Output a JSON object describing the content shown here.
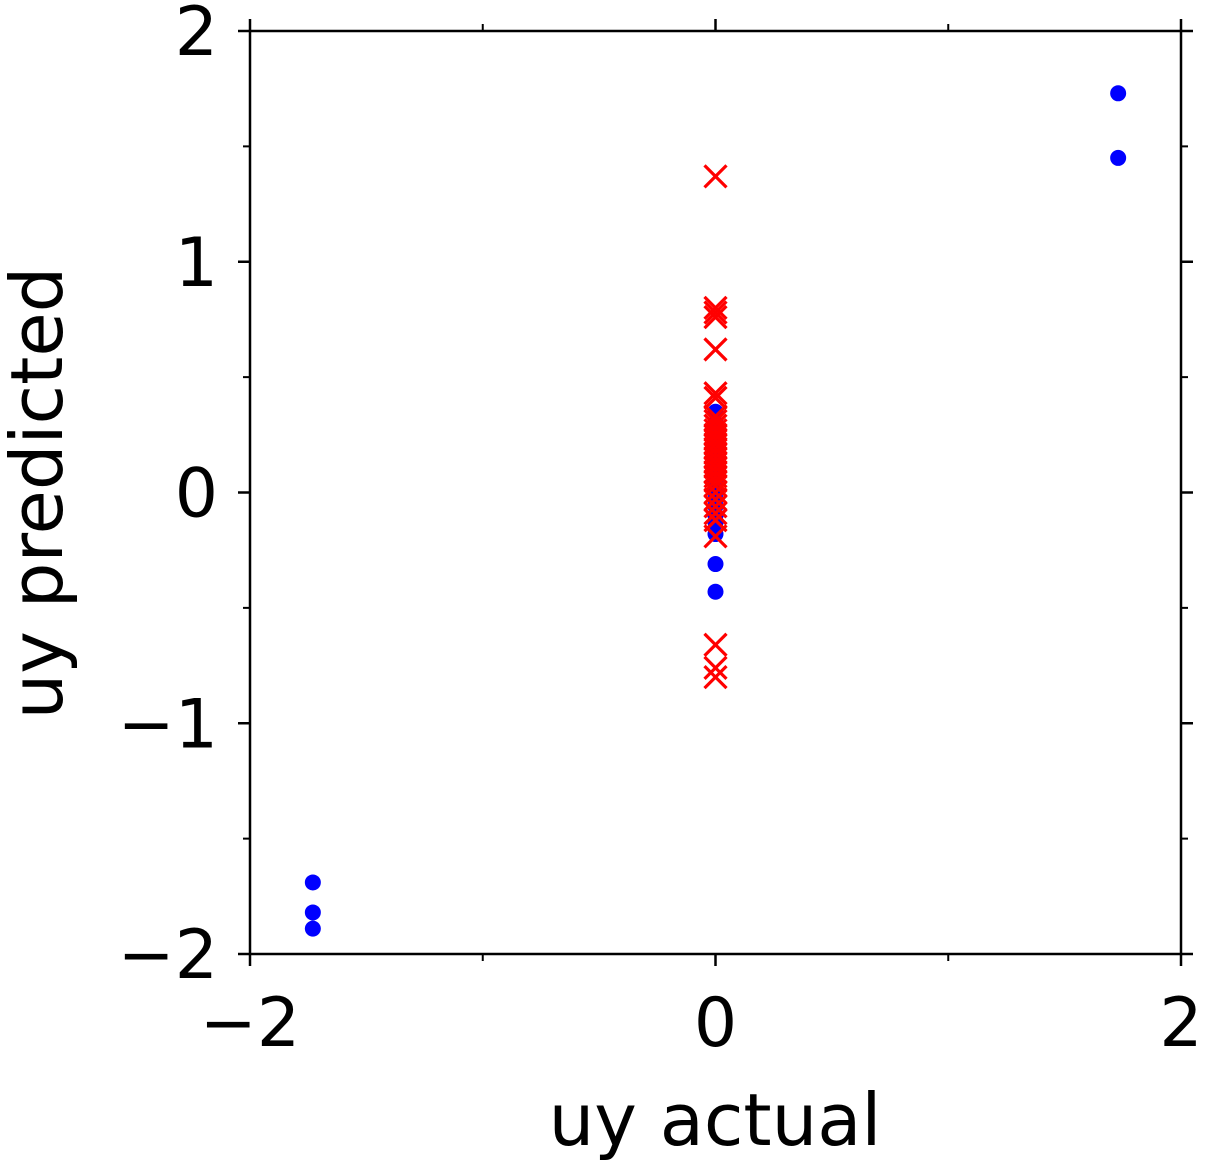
{
  "chart_data": {
    "type": "scatter",
    "xlabel": "uy actual",
    "ylabel": "uy predicted",
    "xlim": [
      -2,
      2
    ],
    "ylim": [
      -2,
      2
    ],
    "x_ticks": [
      "−2",
      "0",
      "2"
    ],
    "y_ticks": [
      "−2",
      "−1",
      "0",
      "1",
      "2"
    ],
    "x_tick_values": [
      -2,
      0,
      2
    ],
    "y_tick_values": [
      -2,
      -1,
      0,
      1,
      2
    ],
    "x_minor_ticks": [
      -1,
      1
    ],
    "y_minor_ticks": [
      -1.5,
      -0.5,
      0.5,
      1.5
    ],
    "grid": false,
    "series": [
      {
        "marker": "circle",
        "color": "#0000ff",
        "points": [
          [
            1.73,
            1.73
          ],
          [
            1.73,
            1.45
          ],
          [
            -1.73,
            -1.69
          ],
          [
            -1.73,
            -1.82
          ],
          [
            -1.73,
            -1.89
          ],
          [
            0.0,
            0.35
          ],
          [
            0.0,
            0.3
          ],
          [
            0.0,
            0.25
          ],
          [
            0.0,
            0.2
          ],
          [
            0.0,
            0.15
          ],
          [
            0.0,
            0.1
          ],
          [
            0.0,
            0.05
          ],
          [
            0.0,
            0.0
          ],
          [
            0.0,
            -0.03
          ],
          [
            0.0,
            -0.06
          ],
          [
            0.0,
            -0.1
          ],
          [
            0.0,
            -0.13
          ],
          [
            0.0,
            -0.18
          ],
          [
            0.0,
            -0.31
          ],
          [
            0.0,
            -0.43
          ]
        ]
      },
      {
        "marker": "x",
        "color": "#ff0000",
        "points": [
          [
            0.0,
            1.37
          ],
          [
            0.0,
            0.8
          ],
          [
            0.0,
            0.78
          ],
          [
            0.0,
            0.76
          ],
          [
            0.0,
            0.62
          ],
          [
            0.0,
            0.43
          ],
          [
            0.0,
            0.41
          ],
          [
            0.0,
            0.33
          ],
          [
            0.0,
            0.31
          ],
          [
            0.0,
            0.29
          ],
          [
            0.0,
            0.27
          ],
          [
            0.0,
            0.25
          ],
          [
            0.0,
            0.23
          ],
          [
            0.0,
            0.21
          ],
          [
            0.0,
            0.19
          ],
          [
            0.0,
            0.17
          ],
          [
            0.0,
            0.15
          ],
          [
            0.0,
            0.13
          ],
          [
            0.0,
            0.11
          ],
          [
            0.0,
            0.09
          ],
          [
            0.0,
            0.07
          ],
          [
            0.0,
            0.05
          ],
          [
            0.0,
            0.03
          ],
          [
            0.0,
            0.0
          ],
          [
            0.0,
            -0.03
          ],
          [
            0.0,
            -0.06
          ],
          [
            0.0,
            -0.09
          ],
          [
            0.0,
            -0.12
          ],
          [
            0.0,
            -0.19
          ],
          [
            0.0,
            -0.66
          ],
          [
            0.0,
            -0.76
          ],
          [
            0.0,
            -0.8
          ]
        ]
      }
    ]
  }
}
